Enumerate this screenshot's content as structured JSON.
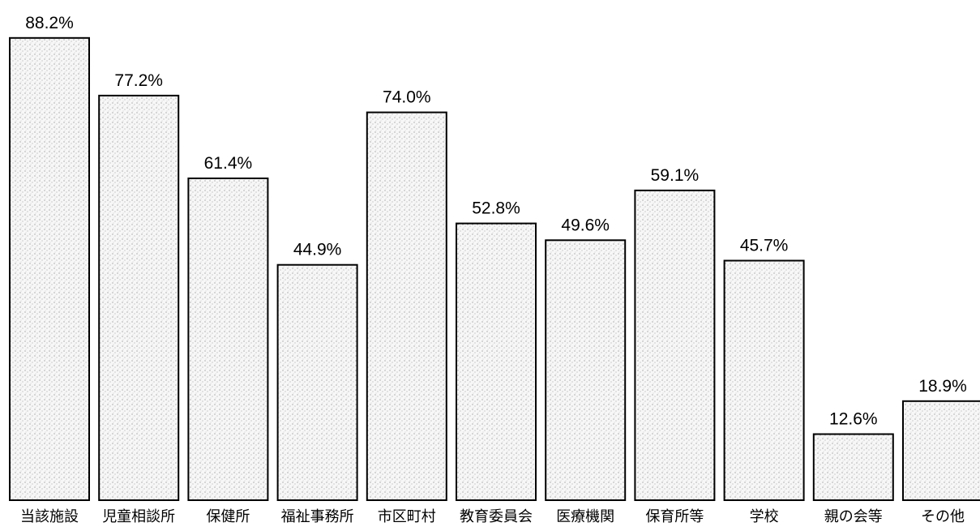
{
  "chart_data": {
    "type": "bar",
    "title": "",
    "xlabel": "",
    "ylabel": "",
    "ylim": [
      0,
      100
    ],
    "grid": false,
    "legend": "none",
    "categories": [
      "当該施設",
      "児童相談所",
      "保健所",
      "福祉事務所",
      "市区町村",
      "教育委員会",
      "医療機関",
      "保育所等",
      "学校",
      "親の会等",
      "その他"
    ],
    "values": [
      88.2,
      77.2,
      61.4,
      44.9,
      74.0,
      52.8,
      49.6,
      59.1,
      45.7,
      12.6,
      18.9
    ],
    "value_labels": [
      "88.2%",
      "77.2%",
      "61.4%",
      "44.9%",
      "74.0%",
      "52.8%",
      "49.6%",
      "59.1%",
      "45.7%",
      "12.6%",
      "18.9%"
    ],
    "colors": {
      "bar_fill": "#f2f2f2",
      "bar_stroke": "#000000",
      "stipple": "#333333"
    }
  }
}
